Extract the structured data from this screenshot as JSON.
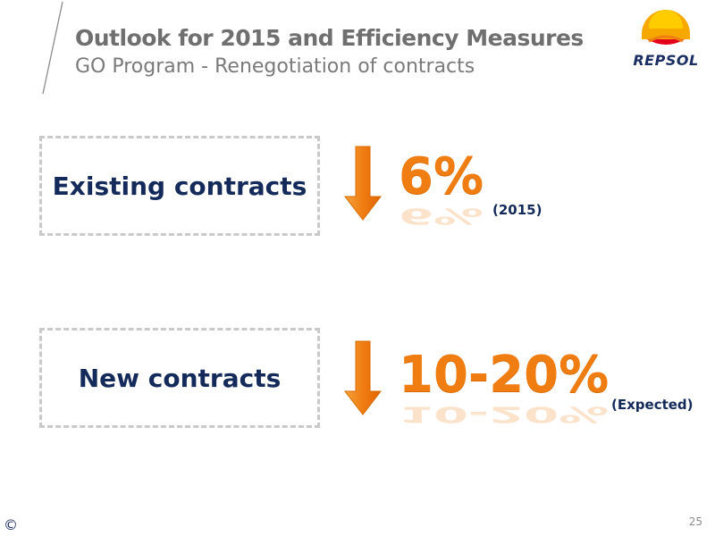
{
  "header": {
    "title": "Outlook for 2015 and Efficiency Measures",
    "subtitle": "GO Program - Renegotiation of contracts"
  },
  "logo": {
    "text": "REPSOL",
    "icon": "repsol-logo-icon"
  },
  "rows": [
    {
      "label": "Existing contracts",
      "value": "6%",
      "note": "(2015)",
      "icon": "down-arrow-icon"
    },
    {
      "label": "New contracts",
      "value": "10-20%",
      "note": "(Expected)",
      "icon": "down-arrow-icon"
    }
  ],
  "footer": {
    "copyright": "©",
    "page_number": "25"
  },
  "colors": {
    "accent_orange": "#f07d12",
    "text_navy": "#132a5a",
    "title_gray": "#6f6f6f",
    "box_border": "#c9c9c9"
  }
}
